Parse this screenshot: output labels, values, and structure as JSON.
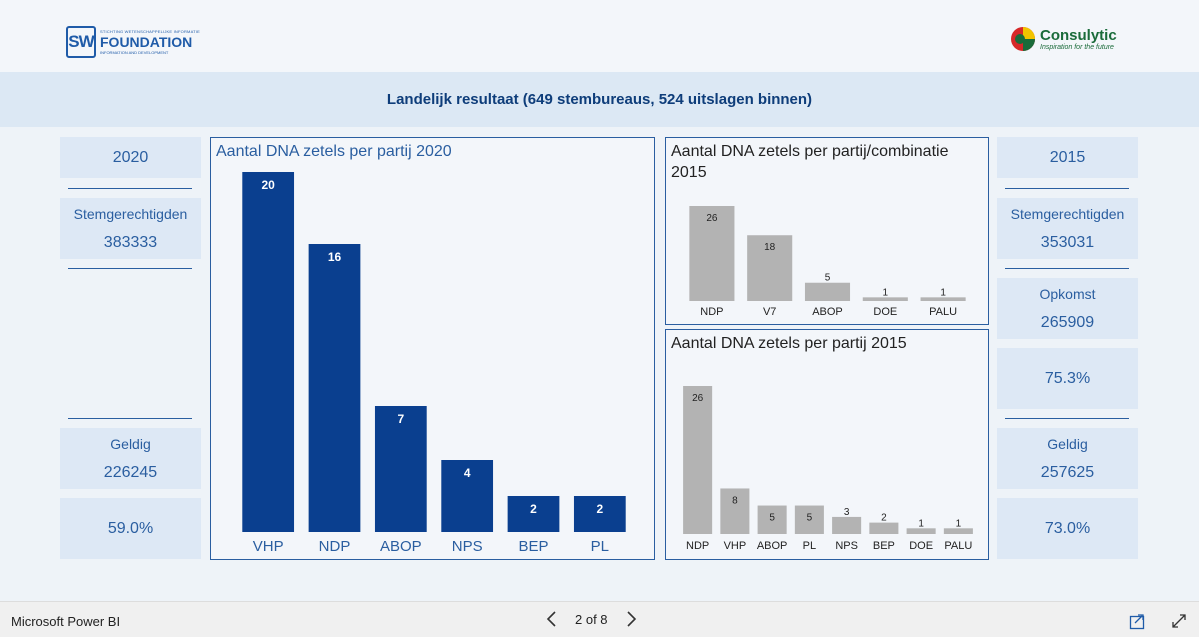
{
  "header": {
    "sw_logo": {
      "mark": "SW",
      "top_line": "STICHTING WETENSCHAPPELIJKE INFORMATIE",
      "name": "FOUNDATION",
      "sub_line": "INFORMATION AND DEVELOPMENT"
    },
    "consulytic_logo": {
      "name": "Consulytic",
      "tagline": "Inspiration for the future"
    }
  },
  "banner": {
    "title": "Landelijk resultaat (649 stembureaus, 524 uitslagen binnen)"
  },
  "left_cards": {
    "year": "2020",
    "stem_label": "Stemgerechtigden",
    "stem_value": "383333",
    "geldig_label": "Geldig",
    "geldig_value": "226245",
    "pct": "59.0%"
  },
  "right_cards": {
    "year": "2015",
    "stem_label": "Stemgerechtigden",
    "stem_value": "353031",
    "opkomst_label": "Opkomst",
    "opkomst_value": "265909",
    "opkomst_pct": "75.3%",
    "geldig_label": "Geldig",
    "geldig_value": "257625",
    "pct": "73.0%"
  },
  "colors": {
    "blue_bar": "#0a3f8f",
    "gray_bar": "#b3b3b3",
    "card_bg": "#dde8f5",
    "text_blue": "#2a5ea0"
  },
  "chart_data": [
    {
      "type": "bar",
      "title": "Aantal DNA zetels per partij 2020",
      "categories": [
        "VHP",
        "NDP",
        "ABOP",
        "NPS",
        "BEP",
        "PL"
      ],
      "values": [
        20,
        16,
        7,
        4,
        2,
        2
      ],
      "ylim": [
        0,
        20
      ],
      "grid": false
    },
    {
      "type": "bar",
      "title": "Aantal DNA zetels per partij/combinatie 2015",
      "categories": [
        "NDP",
        "V7",
        "ABOP",
        "DOE",
        "PALU"
      ],
      "values": [
        26,
        18,
        5,
        1,
        1
      ],
      "ylim": [
        0,
        26
      ],
      "grid": false
    },
    {
      "type": "bar",
      "title": "Aantal DNA zetels per partij 2015",
      "categories": [
        "NDP",
        "VHP",
        "ABOP",
        "PL",
        "NPS",
        "BEP",
        "DOE",
        "PALU"
      ],
      "values": [
        26,
        8,
        5,
        5,
        3,
        2,
        1,
        1
      ],
      "ylim": [
        0,
        26
      ],
      "grid": false
    }
  ],
  "footer": {
    "brand": "Microsoft Power BI",
    "page": "2 of 8",
    "prev_icon": "chevron-left-icon",
    "next_icon": "chevron-right-icon",
    "share_icon": "share-icon",
    "fullscreen_icon": "expand-icon"
  }
}
